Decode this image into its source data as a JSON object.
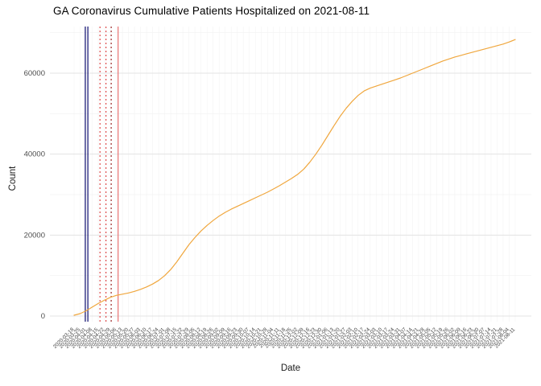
{
  "chart_data": {
    "type": "line",
    "title": "GA Coronavirus Cumulative Patients Hospitalized on 2021-08-11",
    "xlabel": "Date",
    "ylabel": "Count",
    "ylim": [
      0,
      71000
    ],
    "yticks": [
      0,
      20000,
      40000,
      60000
    ],
    "yticks_minor": [
      10000,
      30000,
      50000,
      70000
    ],
    "grid": true,
    "legend": "none",
    "line_color": "#F0A73E",
    "x": [
      "2020-03-18",
      "2020-03-25",
      "2020-04-01",
      "2020-04-08",
      "2020-04-15",
      "2020-04-22",
      "2020-04-29",
      "2020-05-06",
      "2020-05-13",
      "2020-05-20",
      "2020-05-27",
      "2020-06-03",
      "2020-06-10",
      "2020-06-17",
      "2020-06-24",
      "2020-07-01",
      "2020-07-08",
      "2020-07-15",
      "2020-07-22",
      "2020-07-29",
      "2020-08-05",
      "2020-08-12",
      "2020-08-19",
      "2020-08-26",
      "2020-09-02",
      "2020-09-09",
      "2020-09-16",
      "2020-09-23",
      "2020-09-30",
      "2020-10-07",
      "2020-10-14",
      "2020-10-21",
      "2020-10-28",
      "2020-11-04",
      "2020-11-11",
      "2020-11-18",
      "2020-11-25",
      "2020-12-02",
      "2020-12-09",
      "2020-12-16",
      "2020-12-23",
      "2020-12-30",
      "2021-01-06",
      "2021-01-13",
      "2021-01-20",
      "2021-01-27",
      "2021-02-03",
      "2021-02-10",
      "2021-02-17",
      "2021-02-24",
      "2021-03-03",
      "2021-03-10",
      "2021-03-17",
      "2021-03-24",
      "2021-03-31",
      "2021-04-07",
      "2021-04-14",
      "2021-04-21",
      "2021-04-28",
      "2021-05-05",
      "2021-05-12",
      "2021-05-19",
      "2021-05-26",
      "2021-06-02",
      "2021-06-09",
      "2021-06-16",
      "2021-06-23",
      "2021-06-30",
      "2021-07-07",
      "2021-07-14",
      "2021-07-21",
      "2021-07-28",
      "2021-08-04",
      "2021-08-11"
    ],
    "series": [
      {
        "name": "cumulative-patients-hospitalized",
        "color": "#F0A73E",
        "values": [
          200,
          600,
          1300,
          2200,
          3100,
          3900,
          4600,
          5100,
          5400,
          5700,
          6100,
          6600,
          7200,
          7900,
          8800,
          10000,
          11500,
          13400,
          15500,
          17600,
          19400,
          21000,
          22400,
          23600,
          24700,
          25600,
          26400,
          27100,
          27800,
          28500,
          29200,
          29900,
          30600,
          31400,
          32200,
          33100,
          34000,
          35000,
          36300,
          38000,
          40000,
          42200,
          44600,
          47000,
          49300,
          51300,
          53000,
          54500,
          55600,
          56300,
          56800,
          57300,
          57800,
          58300,
          58800,
          59400,
          60000,
          60600,
          61200,
          61800,
          62400,
          63000,
          63500,
          64000,
          64400,
          64800,
          65200,
          65600,
          66000,
          66400,
          66800,
          67200,
          67700,
          68300
        ]
      }
    ],
    "vlines": [
      {
        "x": "2020-03-31",
        "color": "#1f1f7a",
        "dash": "solid",
        "width": 1.3
      },
      {
        "x": "2020-04-03",
        "color": "#1f1f7a",
        "dash": "solid",
        "width": 1.3
      },
      {
        "x": "2020-04-17",
        "color": "#d62728",
        "dash": "dotted",
        "width": 1
      },
      {
        "x": "2020-04-24",
        "color": "#d62728",
        "dash": "dotted",
        "width": 1
      },
      {
        "x": "2020-04-30",
        "color": "#8b0000",
        "dash": "dotted",
        "width": 1
      },
      {
        "x": "2020-05-08",
        "color": "#e87070",
        "dash": "solid",
        "width": 1.2
      }
    ]
  }
}
